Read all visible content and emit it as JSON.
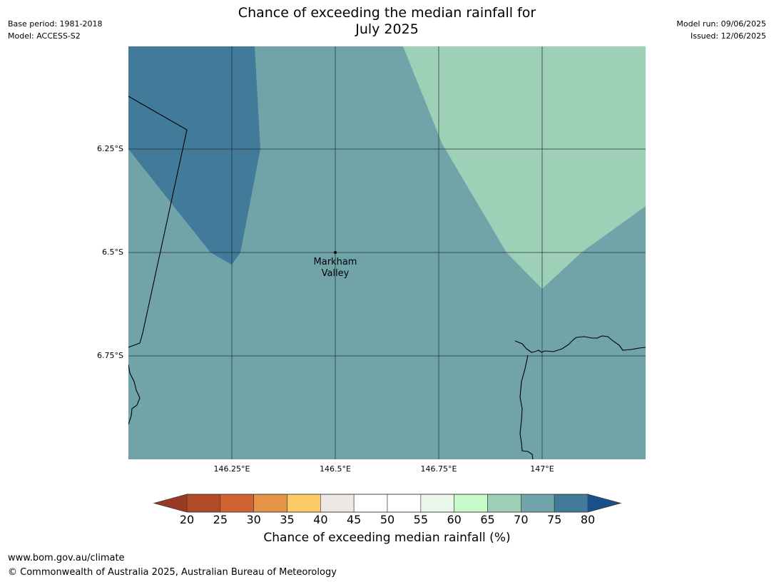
{
  "meta": {
    "base_period": "Base period: 1981-2018",
    "model": "Model: ACCESS-S2",
    "model_run": "Model run: 09/06/2025",
    "issued": "Issued: 12/06/2025"
  },
  "title": {
    "line1": "Chance of exceeding the median rainfall for",
    "line2": "July 2025"
  },
  "map": {
    "lat_ticks": [
      "6.25°S",
      "6.5°S",
      "6.75°S"
    ],
    "lon_ticks": [
      "146.25°E",
      "146.5°E",
      "146.75°E",
      "147°E"
    ],
    "place": {
      "name": "Markham\nValley",
      "lon": 146.5,
      "lat": -6.5
    },
    "regions": [
      {
        "category": "70-75",
        "color": "#70a4a8"
      },
      {
        "category": "75-80",
        "color": "#427b9a"
      },
      {
        "category": "65-70",
        "color": "#9ed0b8"
      }
    ]
  },
  "colorbar": {
    "label": "Chance of exceeding median rainfall (%)",
    "ticks": [
      "20",
      "25",
      "30",
      "35",
      "40",
      "45",
      "50",
      "55",
      "60",
      "65",
      "70",
      "75",
      "80"
    ],
    "under_color": "#9a3a24",
    "over_color": "#1a4f8a",
    "bins": [
      {
        "range": "20-25",
        "color": "#b04a27"
      },
      {
        "range": "25-30",
        "color": "#cf6431"
      },
      {
        "range": "30-35",
        "color": "#e49447"
      },
      {
        "range": "35-40",
        "color": "#fdcb66"
      },
      {
        "range": "40-45",
        "color": "#ede8e5"
      },
      {
        "range": "45-50",
        "color": "#ffffff"
      },
      {
        "range": "50-55",
        "color": "#ffffff"
      },
      {
        "range": "55-60",
        "color": "#e9f6e9"
      },
      {
        "range": "60-65",
        "color": "#c8fac8"
      },
      {
        "range": "65-70",
        "color": "#9ed0b8"
      },
      {
        "range": "70-75",
        "color": "#70a4a8"
      },
      {
        "range": "75-80",
        "color": "#427b9a"
      }
    ]
  },
  "footer": {
    "url": "www.bom.gov.au/climate",
    "copyright": "© Commonwealth of Australia 2025, Australian Bureau of Meteorology"
  }
}
